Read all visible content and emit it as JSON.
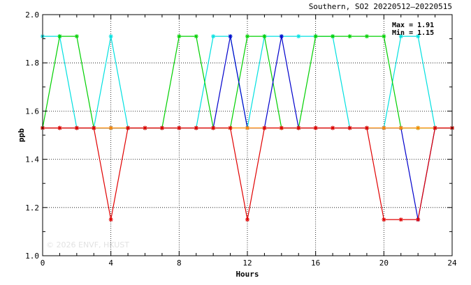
{
  "chart_data": {
    "type": "line",
    "title": "Southern, SO2 20220512–20220515",
    "xlabel": "Hours",
    "ylabel": "ppb",
    "xlim": [
      0,
      24
    ],
    "ylim": [
      1.0,
      2.0
    ],
    "x_ticks": [
      0,
      4,
      8,
      12,
      16,
      20,
      24
    ],
    "y_ticks": [
      1.0,
      1.2,
      1.4,
      1.6,
      1.8,
      2.0
    ],
    "grid": true,
    "stats": {
      "max_label": "Max = 1.91",
      "min_label": "Min = 1.15"
    },
    "watermark": "© 2026  ENVF, HKUST",
    "x": [
      0,
      1,
      2,
      3,
      4,
      5,
      6,
      7,
      8,
      9,
      10,
      11,
      12,
      13,
      14,
      15,
      16,
      17,
      18,
      19,
      20,
      21,
      22,
      23,
      24
    ],
    "series": [
      {
        "color": "#00e0e0",
        "values": [
          1.91,
          1.91,
          1.53,
          1.53,
          1.91,
          1.53,
          1.53,
          1.53,
          1.53,
          1.53,
          1.91,
          1.91,
          1.53,
          1.91,
          1.91,
          1.91,
          1.91,
          1.91,
          1.53,
          1.53,
          1.53,
          1.91,
          1.91,
          1.53,
          1.53
        ]
      },
      {
        "color": "#00d000",
        "values": [
          1.53,
          1.91,
          1.91,
          1.53,
          1.53,
          1.53,
          1.53,
          1.53,
          1.91,
          1.91,
          1.53,
          1.53,
          1.91,
          1.91,
          1.53,
          1.53,
          1.91,
          1.91,
          1.91,
          1.91,
          1.91,
          1.53,
          1.53,
          1.53,
          1.53
        ]
      },
      {
        "color": "#0000cc",
        "values": [
          1.53,
          1.53,
          1.53,
          1.53,
          1.53,
          1.53,
          1.53,
          1.53,
          1.53,
          1.53,
          1.53,
          1.91,
          1.53,
          1.53,
          1.91,
          1.53,
          1.53,
          1.53,
          1.53,
          1.53,
          1.53,
          1.53,
          1.15,
          1.53,
          1.53
        ]
      },
      {
        "color": "#ff8800",
        "values": [
          1.53,
          1.53,
          1.53,
          1.53,
          1.53,
          1.53,
          1.53,
          1.53,
          1.53,
          1.53,
          1.53,
          1.53,
          1.53,
          1.53,
          1.53,
          1.53,
          1.53,
          1.53,
          1.53,
          1.53,
          1.53,
          1.53,
          1.53,
          1.53,
          1.53
        ]
      },
      {
        "color": "#e00000",
        "values": [
          1.53,
          1.53,
          1.53,
          1.53,
          1.15,
          1.53,
          1.53,
          1.53,
          1.53,
          1.53,
          1.53,
          1.53,
          1.15,
          1.53,
          1.53,
          1.53,
          1.53,
          1.53,
          1.53,
          1.53,
          1.15,
          1.15,
          1.15,
          1.53,
          1.53
        ]
      }
    ]
  }
}
